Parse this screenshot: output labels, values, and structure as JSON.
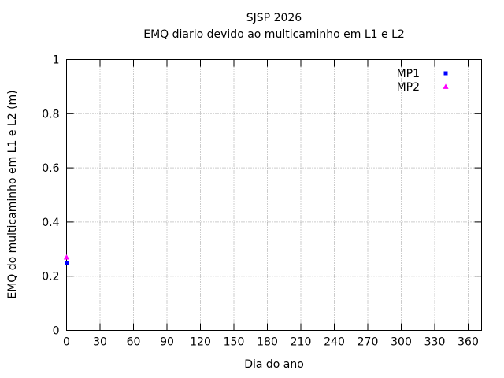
{
  "chart_data": {
    "type": "scatter",
    "title": "SJSP 2026",
    "subtitle": "EMQ diario devido ao multicaminho em L1 e L2",
    "xlabel": "Dia do ano",
    "ylabel": "EMQ do multicaminho em L1 e L2 (m)",
    "xlim": [
      0,
      372
    ],
    "ylim": [
      0,
      1
    ],
    "xticks": [
      0,
      30,
      60,
      90,
      120,
      150,
      180,
      210,
      240,
      270,
      300,
      330,
      360
    ],
    "yticks": [
      0,
      0.2,
      0.4,
      0.6,
      0.8,
      1
    ],
    "ytick_labels": [
      "0",
      "0.2",
      "0.4",
      "0.6",
      "0.8",
      "1"
    ],
    "grid": "dotted-major-both-axes",
    "ticks": "inward-mirrored-all-borders",
    "legend_position": "top-right-inside",
    "series": [
      {
        "name": "MP1",
        "color": "#0000ff",
        "marker": "square",
        "points": [
          [
            0,
            0.25
          ]
        ]
      },
      {
        "name": "MP2",
        "color": "#ff00ff",
        "marker": "triangle-up",
        "points": [
          [
            0,
            0.27
          ]
        ]
      }
    ],
    "colors": {
      "axis": "#000000",
      "grid": "#999999",
      "text": "#000000",
      "background": "#ffffff",
      "mp1": "#0000ff",
      "mp2": "#ff00ff"
    }
  }
}
